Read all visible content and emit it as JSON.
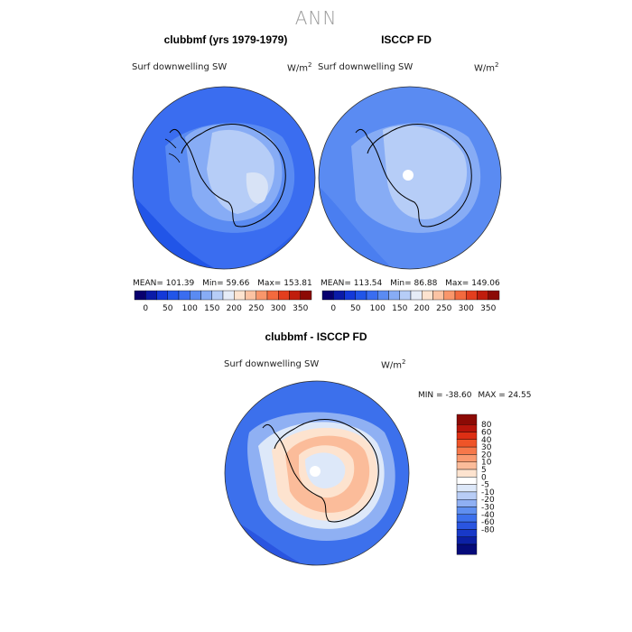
{
  "title": "ANN",
  "panels": [
    {
      "title": "clubbmf (yrs 1979-1979)",
      "variable": "Surf downwelling SW",
      "unit_base": "W/m",
      "unit_exp": "2",
      "mean_label": "MEAN=",
      "mean": "101.39",
      "min_label": "Min=",
      "min": "59.66",
      "max_label": "Max=",
      "max": "153.81"
    },
    {
      "title": "ISCCP FD",
      "variable": "Surf downwelling SW",
      "unit_base": "W/m",
      "unit_exp": "2",
      "mean_label": "MEAN=",
      "mean": "113.54",
      "min_label": "Min=",
      "min": "86.88",
      "max_label": "Max=",
      "max": "149.06"
    }
  ],
  "top_colorbar": {
    "colors": [
      "#08006e",
      "#0a1ba8",
      "#1339d9",
      "#2155e8",
      "#3a6df0",
      "#5a8bf2",
      "#87acf5",
      "#b6cdf7",
      "#e6ecf7",
      "#fde3cf",
      "#fcc3a3",
      "#f9966b",
      "#f36a3e",
      "#e33e1e",
      "#c01d0d",
      "#8c0a05"
    ],
    "ticks": [
      "0",
      "50",
      "100",
      "150",
      "200",
      "250",
      "300",
      "350"
    ]
  },
  "diff_panel": {
    "title": "clubbmf - ISCCP FD",
    "variable": "Surf downwelling SW",
    "unit_base": "W/m",
    "unit_exp": "2",
    "min_label": "MIN =",
    "min": "-38.60",
    "max_label": "MAX =",
    "max": "24.55"
  },
  "diff_colorbar": {
    "colors": [
      "#8c0a05",
      "#b7150b",
      "#dd2f14",
      "#ef5428",
      "#f6784a",
      "#f99a70",
      "#fbbc9a",
      "#fde3cf",
      "#ffffff",
      "#dde8f9",
      "#b8cdf6",
      "#8fb0f3",
      "#5f8ff0",
      "#3c70ec",
      "#2a55e0",
      "#1839c8",
      "#0c20a4",
      "#050b7a"
    ],
    "ticks": [
      "80",
      "60",
      "40",
      "30",
      "20",
      "10",
      "5",
      "0",
      "-5",
      "-10",
      "-20",
      "-30",
      "-40",
      "-60",
      "-80"
    ]
  }
}
